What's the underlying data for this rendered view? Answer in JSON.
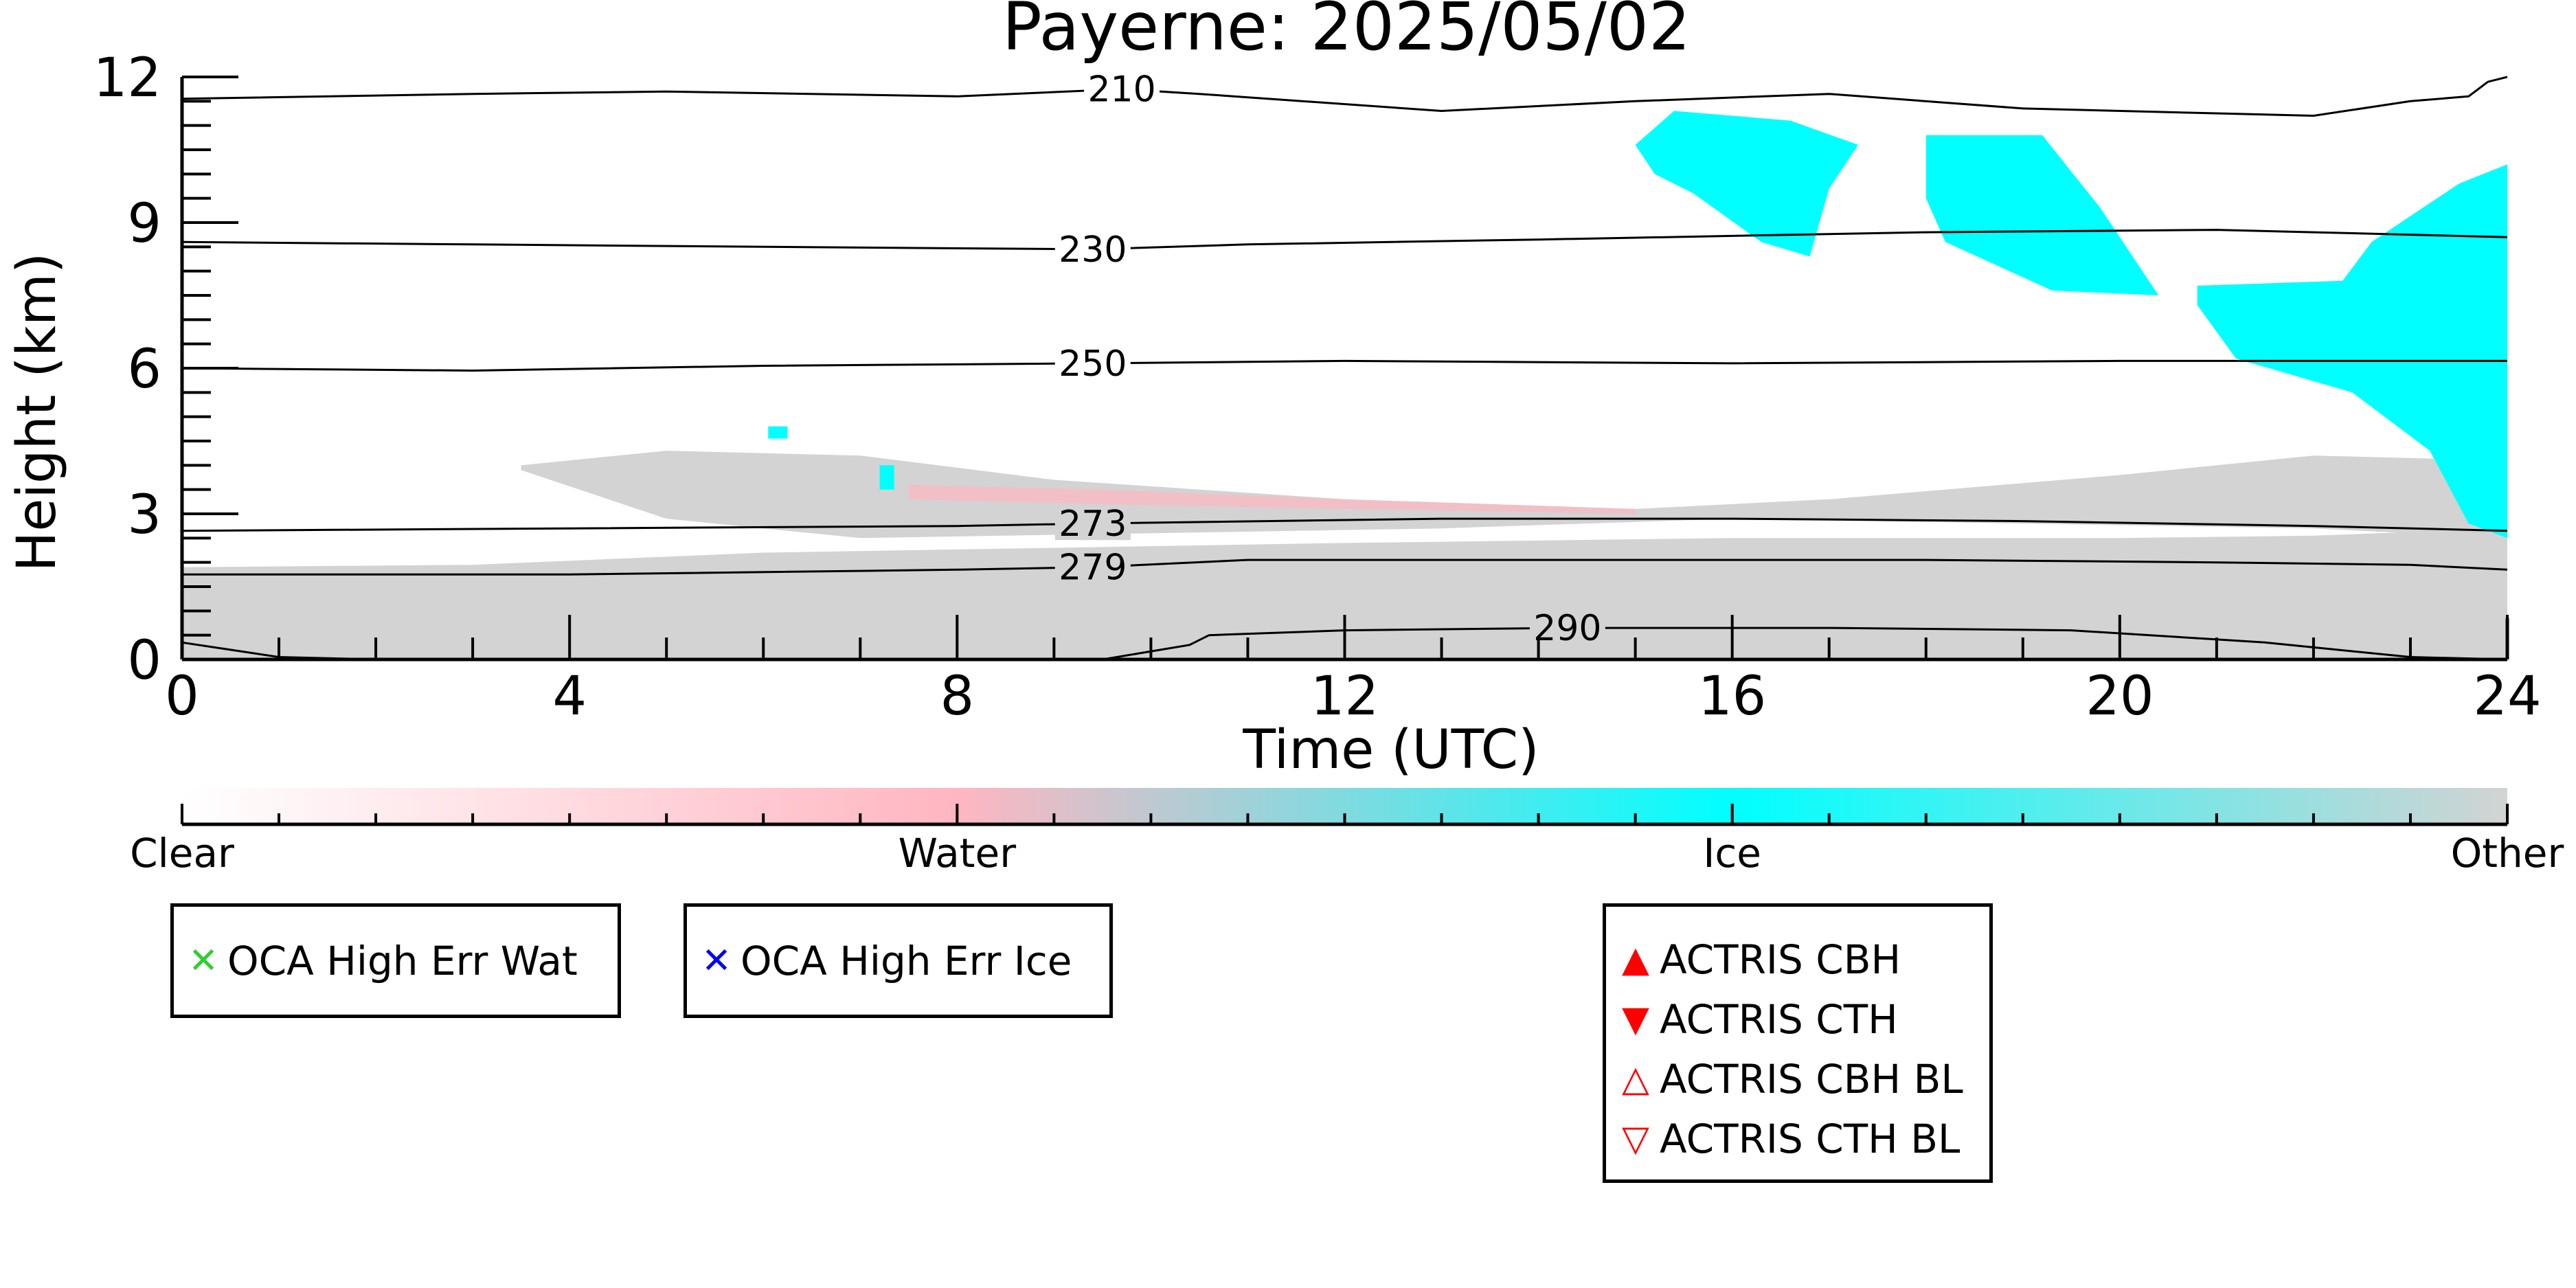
{
  "chart_data": {
    "type": "heatmap",
    "title": "Payerne: 2025/05/02",
    "xlabel": "Time (UTC)",
    "ylabel": "Height (km)",
    "xlim": [
      0,
      24
    ],
    "ylim": [
      0,
      12
    ],
    "x_ticks": [
      0,
      4,
      8,
      12,
      16,
      20,
      24
    ],
    "y_ticks": [
      0,
      3,
      6,
      9,
      12
    ],
    "grid": false,
    "categories": [
      "Clear",
      "Water",
      "Ice",
      "Other"
    ],
    "category_colors": {
      "Clear": "#ffffff",
      "Water": "#ffb6c1",
      "Ice": "#00ffff",
      "Other": "#d3d3d3"
    },
    "contours": [
      {
        "label": "210",
        "label_x": 9.7,
        "points": [
          [
            0,
            11.55
          ],
          [
            3,
            11.65
          ],
          [
            5,
            11.7
          ],
          [
            8,
            11.6
          ],
          [
            9.7,
            11.75
          ],
          [
            10.5,
            11.65
          ],
          [
            13,
            11.3
          ],
          [
            15,
            11.5
          ],
          [
            17,
            11.65
          ],
          [
            19,
            11.35
          ],
          [
            21,
            11.25
          ],
          [
            22,
            11.2
          ],
          [
            23,
            11.5
          ],
          [
            23.6,
            11.6
          ],
          [
            23.8,
            11.9
          ],
          [
            24,
            12.0
          ]
        ]
      },
      {
        "label": "230",
        "label_x": 9.4,
        "points": [
          [
            0,
            8.6
          ],
          [
            3,
            8.55
          ],
          [
            6,
            8.5
          ],
          [
            9.4,
            8.45
          ],
          [
            11,
            8.55
          ],
          [
            14,
            8.65
          ],
          [
            18,
            8.8
          ],
          [
            21,
            8.85
          ],
          [
            22,
            8.8
          ],
          [
            24,
            8.7
          ]
        ]
      },
      {
        "label": "250",
        "label_x": 9.4,
        "points": [
          [
            0,
            6.0
          ],
          [
            3,
            5.95
          ],
          [
            6,
            6.05
          ],
          [
            9.4,
            6.1
          ],
          [
            12,
            6.15
          ],
          [
            16,
            6.1
          ],
          [
            20,
            6.15
          ],
          [
            24,
            6.15
          ]
        ]
      },
      {
        "label": "273",
        "label_x": 9.4,
        "points": [
          [
            0,
            2.65
          ],
          [
            4,
            2.7
          ],
          [
            8,
            2.75
          ],
          [
            9.4,
            2.8
          ],
          [
            13,
            2.9
          ],
          [
            16,
            2.9
          ],
          [
            19,
            2.85
          ],
          [
            22,
            2.75
          ],
          [
            24,
            2.65
          ]
        ]
      },
      {
        "label": "279",
        "label_x": 9.4,
        "points": [
          [
            0,
            1.75
          ],
          [
            4,
            1.75
          ],
          [
            8,
            1.85
          ],
          [
            9.4,
            1.9
          ],
          [
            11,
            2.05
          ],
          [
            14,
            2.05
          ],
          [
            18,
            2.05
          ],
          [
            21,
            2.0
          ],
          [
            23,
            1.95
          ],
          [
            24,
            1.85
          ]
        ]
      },
      {
        "label": "290",
        "label_x": 14.3,
        "points": [
          [
            0,
            0.35
          ],
          [
            0.5,
            0.2
          ],
          [
            1,
            0.05
          ],
          [
            2,
            0
          ],
          [
            9.5,
            0
          ],
          [
            10.4,
            0.3
          ],
          [
            10.6,
            0.5
          ],
          [
            12,
            0.6
          ],
          [
            14.3,
            0.65
          ],
          [
            17,
            0.65
          ],
          [
            19.5,
            0.6
          ],
          [
            21.5,
            0.35
          ],
          [
            23,
            0.05
          ],
          [
            24,
            0
          ]
        ]
      }
    ],
    "regions": [
      {
        "category": "Other",
        "polygon": [
          [
            0,
            0
          ],
          [
            0,
            1.9
          ],
          [
            3,
            1.95
          ],
          [
            6,
            2.2
          ],
          [
            9,
            2.3
          ],
          [
            12,
            2.4
          ],
          [
            16,
            2.5
          ],
          [
            20,
            2.5
          ],
          [
            22,
            2.55
          ],
          [
            24,
            2.7
          ],
          [
            24,
            0
          ]
        ]
      },
      {
        "category": "Other",
        "polygon": [
          [
            3.5,
            4.0
          ],
          [
            5,
            4.3
          ],
          [
            7,
            4.2
          ],
          [
            9,
            3.7
          ],
          [
            12,
            3.3
          ],
          [
            15,
            3.1
          ],
          [
            17,
            3.3
          ],
          [
            20,
            3.8
          ],
          [
            22,
            4.2
          ],
          [
            24,
            4.1
          ],
          [
            24,
            2.5
          ],
          [
            22,
            2.7
          ],
          [
            19,
            2.8
          ],
          [
            16,
            2.9
          ],
          [
            13,
            2.7
          ],
          [
            10,
            2.6
          ],
          [
            7,
            2.5
          ],
          [
            5,
            2.9
          ],
          [
            3.5,
            3.9
          ]
        ]
      },
      {
        "category": "Water",
        "polygon": [
          [
            7.5,
            3.6
          ],
          [
            9.5,
            3.5
          ],
          [
            12,
            3.3
          ],
          [
            15,
            3.1
          ],
          [
            15,
            3.0
          ],
          [
            12,
            3.1
          ],
          [
            9.5,
            3.2
          ],
          [
            7.5,
            3.3
          ]
        ]
      },
      {
        "category": "Ice",
        "polygon": [
          [
            15,
            10.6
          ],
          [
            15.4,
            11.3
          ],
          [
            16.6,
            11.1
          ],
          [
            17.3,
            10.6
          ],
          [
            17,
            9.7
          ],
          [
            16.8,
            8.3
          ],
          [
            16.3,
            8.6
          ],
          [
            15.6,
            9.6
          ],
          [
            15.2,
            10.0
          ]
        ]
      },
      {
        "category": "Ice",
        "polygon": [
          [
            18,
            10.8
          ],
          [
            19.2,
            10.8
          ],
          [
            19.8,
            9.3
          ],
          [
            20.4,
            7.5
          ],
          [
            19.3,
            7.6
          ],
          [
            18.2,
            8.6
          ],
          [
            18,
            9.5
          ]
        ]
      },
      {
        "category": "Ice",
        "polygon": [
          [
            20.8,
            7.7
          ],
          [
            22.3,
            7.8
          ],
          [
            22.6,
            8.6
          ],
          [
            23.5,
            9.8
          ],
          [
            24,
            10.2
          ],
          [
            24,
            2.5
          ],
          [
            23.6,
            2.8
          ],
          [
            23.2,
            4.3
          ],
          [
            22.4,
            5.5
          ],
          [
            21.2,
            6.2
          ],
          [
            20.8,
            7.3
          ]
        ]
      },
      {
        "category": "Ice",
        "polygon": [
          [
            6.05,
            4.8
          ],
          [
            6.25,
            4.8
          ],
          [
            6.25,
            4.55
          ],
          [
            6.05,
            4.55
          ]
        ]
      },
      {
        "category": "Ice",
        "polygon": [
          [
            7.2,
            4.0
          ],
          [
            7.35,
            4.0
          ],
          [
            7.35,
            3.5
          ],
          [
            7.2,
            3.5
          ]
        ]
      }
    ],
    "colorbar": {
      "labels": [
        "Clear",
        "Water",
        "Ice",
        "Other"
      ]
    },
    "legends": [
      {
        "entries": [
          {
            "marker": "x",
            "color": "#32cd32",
            "label": "OCA High Err Wat"
          }
        ]
      },
      {
        "entries": [
          {
            "marker": "x",
            "color": "#0000ff",
            "label": "OCA High Err Ice"
          }
        ]
      },
      {
        "entries": [
          {
            "marker": "triangle-up",
            "color": "#ff0000",
            "label": "ACTRIS CBH"
          },
          {
            "marker": "triangle-down",
            "color": "#ff0000",
            "label": "ACTRIS CTH"
          },
          {
            "marker": "triangle-up-open",
            "color": "#ff0000",
            "label": "ACTRIS CBH BL"
          },
          {
            "marker": "triangle-down-open",
            "color": "#ff0000",
            "label": "ACTRIS CTH BL"
          }
        ]
      }
    ]
  }
}
